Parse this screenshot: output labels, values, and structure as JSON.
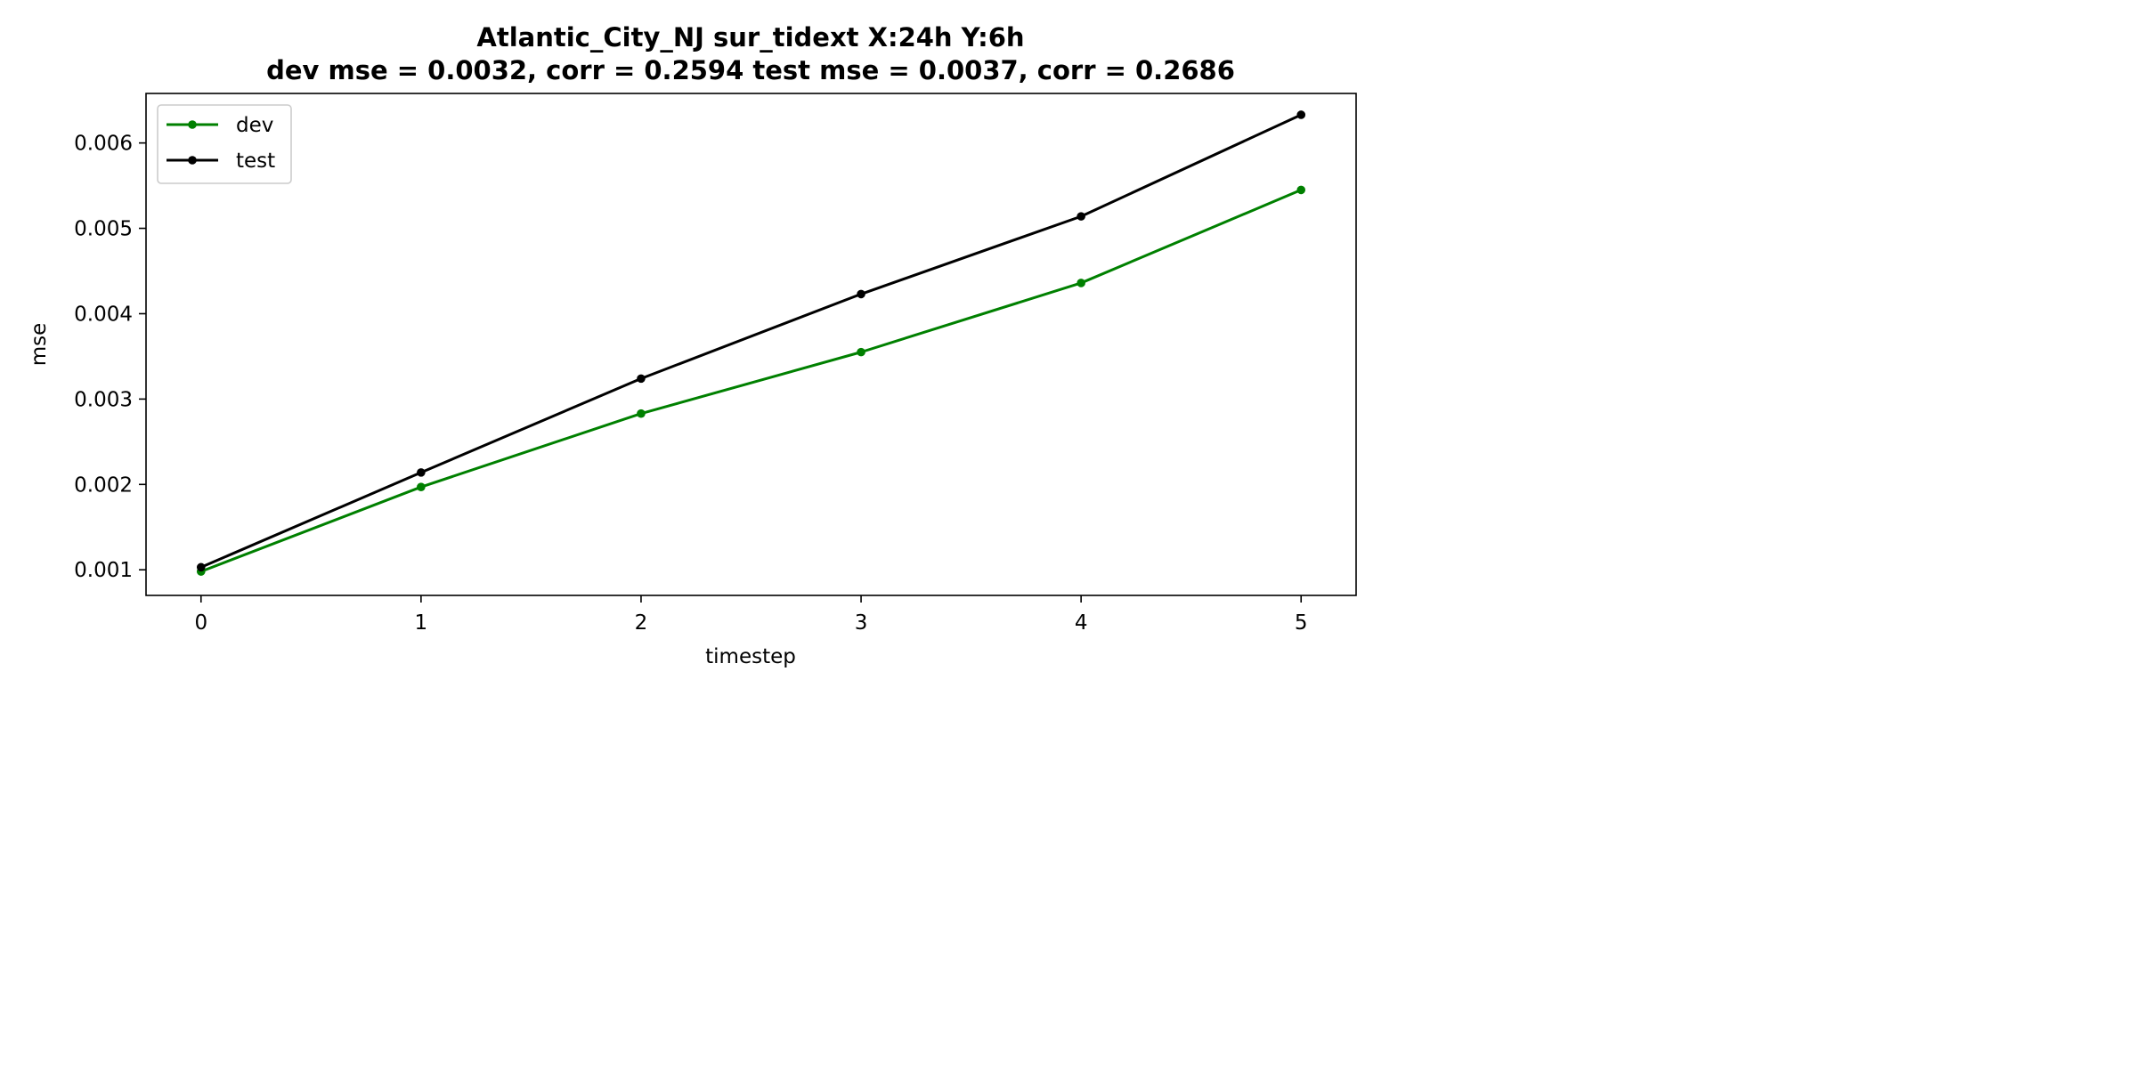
{
  "chart_data": {
    "type": "line",
    "title": "Atlantic_City_NJ   sur_tidext   X:24h   Y:6h",
    "subtitle": "dev mse = 0.0032, corr = 0.2594   test mse = 0.0037, corr = 0.2686",
    "xlabel": "timestep",
    "ylabel": "mse",
    "x": [
      0,
      1,
      2,
      3,
      4,
      5
    ],
    "xlim": [
      -0.25,
      5.25
    ],
    "ylim": [
      0.0007,
      0.00658
    ],
    "xticks": [
      "0",
      "1",
      "2",
      "3",
      "4",
      "5"
    ],
    "yticks": [
      {
        "value": 0.001,
        "label": "0.001"
      },
      {
        "value": 0.002,
        "label": "0.002"
      },
      {
        "value": 0.003,
        "label": "0.003"
      },
      {
        "value": 0.004,
        "label": "0.004"
      },
      {
        "value": 0.005,
        "label": "0.005"
      },
      {
        "value": 0.006,
        "label": "0.006"
      }
    ],
    "grid": false,
    "legend_position": "upper-left",
    "series": [
      {
        "name": "dev",
        "color": "#008000",
        "marker": "circle",
        "values": [
          0.00098,
          0.00197,
          0.00283,
          0.00355,
          0.00436,
          0.00545
        ]
      },
      {
        "name": "test",
        "color": "#000000",
        "marker": "circle",
        "values": [
          0.00103,
          0.00214,
          0.00324,
          0.00423,
          0.00514,
          0.00633
        ]
      }
    ]
  }
}
